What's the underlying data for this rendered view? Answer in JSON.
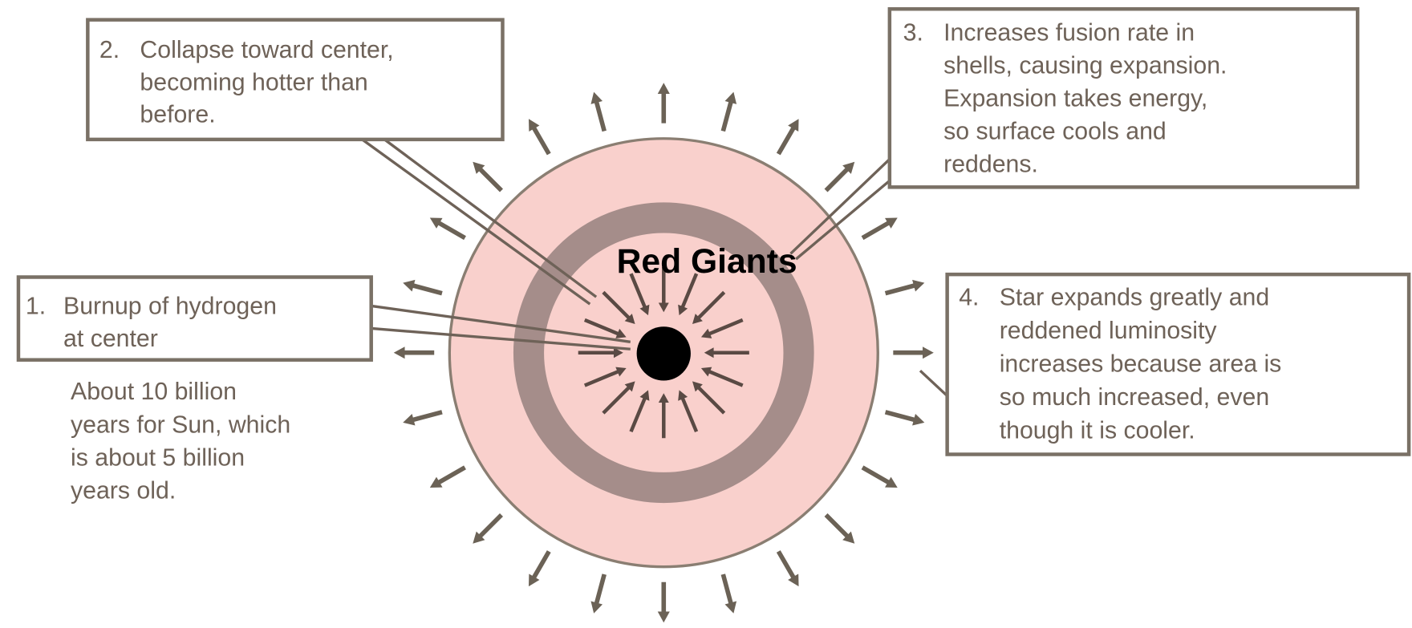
{
  "title": "Red Giants",
  "steps": [
    {
      "number": "1.",
      "lines": [
        "Burnup of  hydrogen",
        "at center"
      ]
    },
    {
      "number": "2.",
      "lines": [
        "Collapse toward center,",
        "becoming hotter than",
        "before."
      ]
    },
    {
      "number": "3.",
      "lines": [
        "Increases fusion rate in",
        "shells, causing expansion.",
        "Expansion takes energy,",
        "so surface cools and",
        "reddens."
      ]
    },
    {
      "number": "4.",
      "lines": [
        "Star expands greatly and",
        "reddened luminosity",
        "increases because area is",
        "so much increased, even",
        "though it is cooler."
      ]
    }
  ],
  "note": [
    "About 10 billion",
    "years for Sun, which",
    "is about 5 billion",
    "years old."
  ]
}
